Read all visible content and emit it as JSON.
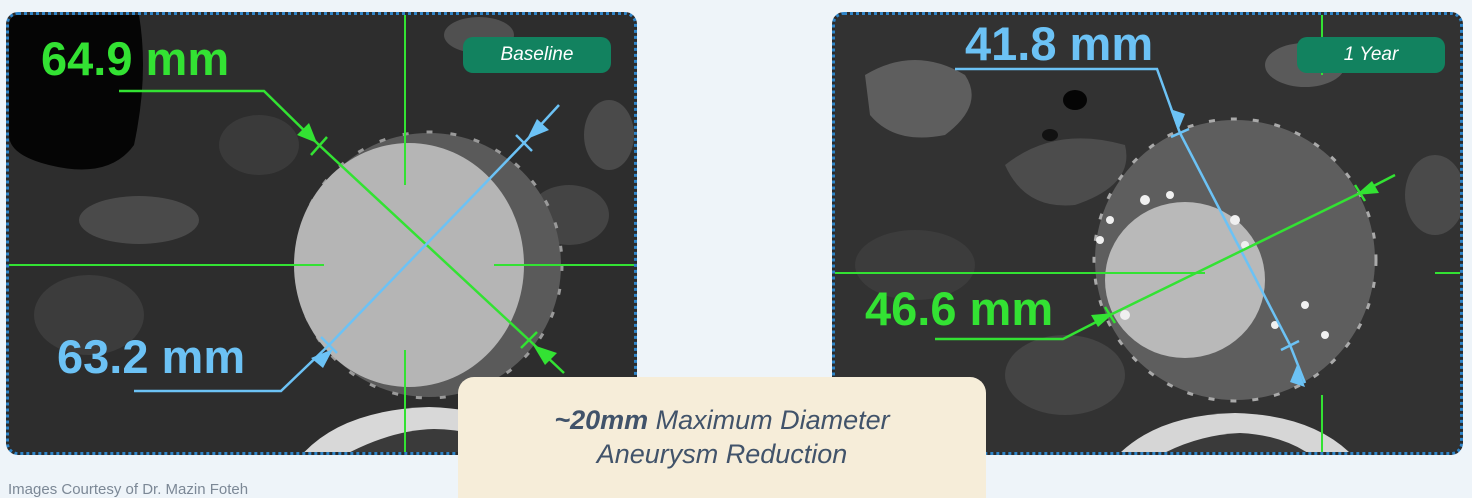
{
  "left_panel": {
    "badge": "Baseline",
    "measurement_green": "64.9 mm",
    "measurement_blue": "63.2 mm"
  },
  "right_panel": {
    "badge": "1 Year",
    "measurement_blue": "41.8 mm",
    "measurement_green": "46.6 mm"
  },
  "callout": {
    "highlight": "~20mm",
    "line1_rest": " Maximum Diameter",
    "line2": "Aneurysm Reduction"
  },
  "credit": "Images Courtesy of Dr. Mazin Foteh",
  "colors": {
    "measure_green": "#33e233",
    "measure_blue": "#6cc2f5",
    "badge_bg": "#12825f",
    "panel_border": "#2e84c8",
    "callout_bg": "#f6edd9"
  }
}
